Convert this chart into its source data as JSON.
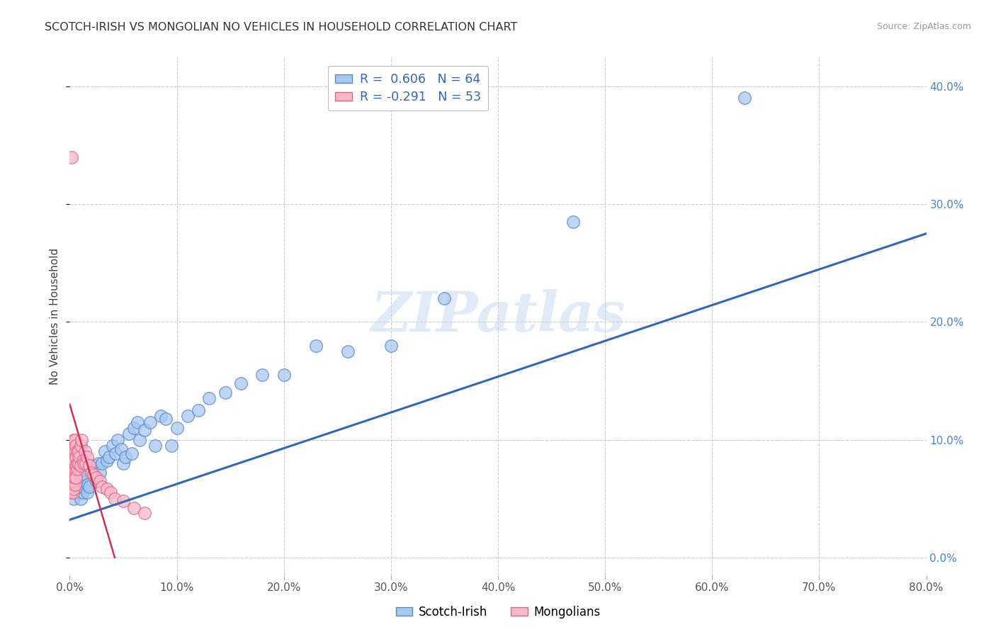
{
  "title": "SCOTCH-IRISH VS MONGOLIAN NO VEHICLES IN HOUSEHOLD CORRELATION CHART",
  "source": "Source: ZipAtlas.com",
  "ylabel": "No Vehicles in Household",
  "xlim": [
    0.0,
    0.8
  ],
  "ylim": [
    -0.015,
    0.425
  ],
  "xticks": [
    0.0,
    0.1,
    0.2,
    0.3,
    0.4,
    0.5,
    0.6,
    0.7,
    0.8
  ],
  "xticklabels": [
    "0.0%",
    "10.0%",
    "20.0%",
    "30.0%",
    "40.0%",
    "50.0%",
    "60.0%",
    "70.0%",
    "80.0%"
  ],
  "yticks": [
    0.0,
    0.1,
    0.2,
    0.3,
    0.4
  ],
  "yticklabels_right": [
    "0.0%",
    "10.0%",
    "20.0%",
    "30.0%",
    "40.0%"
  ],
  "background_color": "#ffffff",
  "grid_color": "#cccccc",
  "watermark": "ZIPatlas",
  "scotch_irish_color": "#a8c8f0",
  "scotch_irish_edge": "#5588cc",
  "mongolian_color": "#f8b8c8",
  "mongolian_edge": "#dd6688",
  "line_blue": "#3366bb",
  "line_pink": "#cc3355",
  "scotch_irish_x": [
    0.003,
    0.004,
    0.005,
    0.005,
    0.006,
    0.006,
    0.007,
    0.007,
    0.008,
    0.008,
    0.009,
    0.01,
    0.01,
    0.011,
    0.012,
    0.012,
    0.013,
    0.013,
    0.014,
    0.015,
    0.016,
    0.017,
    0.018,
    0.02,
    0.022,
    0.023,
    0.025,
    0.027,
    0.028,
    0.03,
    0.033,
    0.035,
    0.037,
    0.04,
    0.043,
    0.045,
    0.048,
    0.05,
    0.052,
    0.055,
    0.058,
    0.06,
    0.063,
    0.065,
    0.07,
    0.075,
    0.08,
    0.085,
    0.09,
    0.095,
    0.1,
    0.11,
    0.12,
    0.13,
    0.145,
    0.16,
    0.18,
    0.2,
    0.23,
    0.26,
    0.3,
    0.35,
    0.47,
    0.63
  ],
  "scotch_irish_y": [
    0.055,
    0.05,
    0.06,
    0.065,
    0.058,
    0.062,
    0.055,
    0.06,
    0.065,
    0.07,
    0.06,
    0.05,
    0.068,
    0.065,
    0.055,
    0.06,
    0.068,
    0.072,
    0.065,
    0.07,
    0.055,
    0.062,
    0.06,
    0.075,
    0.07,
    0.078,
    0.065,
    0.08,
    0.072,
    0.08,
    0.09,
    0.082,
    0.085,
    0.095,
    0.088,
    0.1,
    0.092,
    0.08,
    0.085,
    0.105,
    0.088,
    0.11,
    0.115,
    0.1,
    0.108,
    0.115,
    0.095,
    0.12,
    0.118,
    0.095,
    0.11,
    0.12,
    0.125,
    0.135,
    0.14,
    0.148,
    0.155,
    0.155,
    0.18,
    0.175,
    0.18,
    0.22,
    0.285,
    0.39
  ],
  "mongolian_x": [
    0.001,
    0.001,
    0.001,
    0.002,
    0.002,
    0.002,
    0.003,
    0.003,
    0.003,
    0.003,
    0.003,
    0.003,
    0.003,
    0.004,
    0.004,
    0.004,
    0.004,
    0.005,
    0.005,
    0.005,
    0.005,
    0.005,
    0.006,
    0.006,
    0.006,
    0.006,
    0.007,
    0.007,
    0.007,
    0.008,
    0.008,
    0.009,
    0.01,
    0.01,
    0.011,
    0.012,
    0.013,
    0.014,
    0.015,
    0.016,
    0.018,
    0.02,
    0.022,
    0.025,
    0.028,
    0.03,
    0.035,
    0.038,
    0.042,
    0.05,
    0.06,
    0.07,
    0.002
  ],
  "mongolian_y": [
    0.058,
    0.063,
    0.055,
    0.06,
    0.065,
    0.068,
    0.055,
    0.062,
    0.068,
    0.072,
    0.078,
    0.082,
    0.09,
    0.058,
    0.065,
    0.072,
    0.1,
    0.062,
    0.068,
    0.075,
    0.09,
    0.1,
    0.068,
    0.078,
    0.085,
    0.095,
    0.075,
    0.08,
    0.09,
    0.08,
    0.09,
    0.085,
    0.078,
    0.095,
    0.1,
    0.082,
    0.08,
    0.09,
    0.08,
    0.085,
    0.078,
    0.072,
    0.07,
    0.068,
    0.065,
    0.06,
    0.058,
    0.055,
    0.05,
    0.048,
    0.042,
    0.038,
    0.34
  ],
  "si_line_x0": 0.0,
  "si_line_x1": 0.8,
  "si_line_y0": 0.032,
  "si_line_y1": 0.275,
  "mn_line_x0": 0.0,
  "mn_line_x1": 0.042,
  "mn_line_y0": 0.13,
  "mn_line_y1": 0.0
}
